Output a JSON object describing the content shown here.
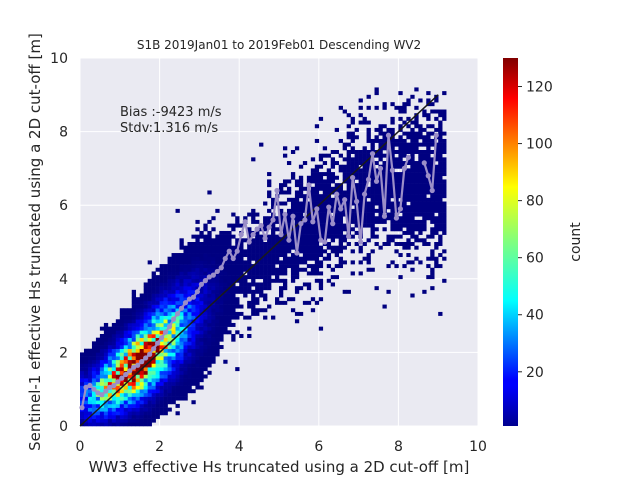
{
  "chart_data": {
    "type": "heatmap",
    "title": "S1B 2019Jan01 to 2019Feb01 Descending WV2",
    "xlabel": "WW3 effective Hs truncated using a 2D cut-off [m]",
    "ylabel": "Sentinel-1 effective Hs truncated using a 2D cut-off [m]",
    "xlim": [
      0,
      10
    ],
    "ylim": [
      0,
      10
    ],
    "xticks": [
      "0",
      "2",
      "4",
      "6",
      "8",
      "10"
    ],
    "yticks": [
      "0",
      "2",
      "4",
      "6",
      "8",
      "10"
    ],
    "grid": true,
    "annotation": [
      "Bias :-9423 m/s",
      "Stdv:1.316 m/s"
    ],
    "colorbar": {
      "label": "count",
      "range": [
        1,
        130
      ],
      "ticks": [
        "20",
        "40",
        "60",
        "80",
        "100",
        "120"
      ],
      "colormap": "jet"
    },
    "density_center_line": {
      "x": [
        0.3,
        1.5,
        3.0,
        5.0,
        7.5
      ],
      "y": [
        0.8,
        1.7,
        3.2,
        5.0,
        6.6
      ]
    },
    "reference_line": {
      "x": [
        0,
        9
      ],
      "y": [
        0,
        9
      ],
      "color": "#1a1a1a"
    },
    "mean_line": {
      "color": "#9b8ec8",
      "x": [
        0.05,
        0.15,
        0.25,
        0.35,
        0.45,
        0.55,
        0.65,
        0.75,
        0.85,
        0.95,
        1.05,
        1.15,
        1.25,
        1.35,
        1.45,
        1.55,
        1.65,
        1.75,
        1.85,
        1.95,
        2.05,
        2.15,
        2.25,
        2.35,
        2.45,
        2.55,
        2.65,
        2.75,
        2.85,
        2.95,
        3.05,
        3.15,
        3.25,
        3.35,
        3.45,
        3.55,
        3.65,
        3.75,
        3.85,
        3.95,
        4.05,
        4.15,
        4.25,
        4.35,
        4.45,
        4.55,
        4.65,
        4.75,
        4.85,
        4.95,
        5.05,
        5.15,
        5.25,
        5.35,
        5.45,
        5.55,
        5.65,
        5.75,
        5.85,
        5.95,
        6.05,
        6.15,
        6.25,
        6.35,
        6.45,
        6.55,
        6.65,
        6.75,
        6.85,
        6.95,
        7.05,
        7.15,
        7.25,
        7.35,
        7.45,
        7.55,
        7.65,
        7.75,
        7.85,
        7.95,
        8.05,
        8.15,
        8.25,
        8.65,
        8.75,
        8.85,
        8.95
      ],
      "y": [
        0.5,
        1.05,
        1.1,
        1.0,
        0.9,
        0.85,
        0.95,
        1.05,
        1.1,
        1.2,
        1.3,
        1.4,
        1.5,
        1.6,
        1.65,
        1.75,
        1.85,
        1.95,
        2.1,
        2.25,
        2.4,
        2.55,
        2.7,
        2.9,
        3.05,
        3.2,
        3.35,
        3.45,
        3.5,
        3.65,
        3.85,
        3.95,
        4.05,
        4.1,
        4.2,
        4.3,
        4.55,
        4.75,
        4.55,
        4.75,
        5.2,
        5.55,
        5.0,
        5.2,
        5.35,
        5.45,
        5.1,
        5.4,
        5.6,
        6.4,
        5.2,
        5.75,
        5.05,
        5.7,
        4.7,
        5.5,
        5.6,
        6.55,
        5.55,
        5.9,
        5.05,
        5.0,
        5.95,
        5.5,
        6.3,
        5.9,
        6.15,
        5.15,
        6.75,
        6.1,
        5.0,
        6.3,
        6.7,
        7.4,
        6.65,
        7.0,
        5.7,
        7.9,
        6.95,
        5.65,
        5.9,
        7.0,
        7.3,
        7.15,
        6.8,
        6.4,
        7.9
      ]
    }
  }
}
